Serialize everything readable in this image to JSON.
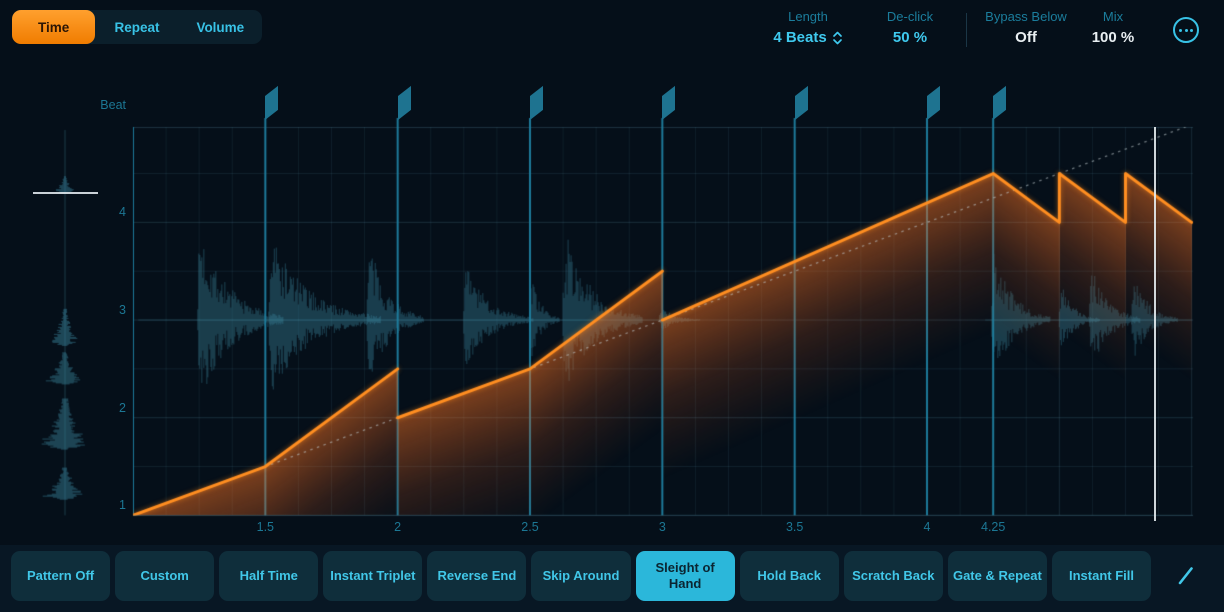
{
  "theme": {
    "background": "#050f19",
    "accent_orange": "#ff8e21",
    "accent_cyan": "#3fc9ee",
    "dim_cyan": "#1b7d9c",
    "white_value": "#e9eff2",
    "flag_color": "#1e7390",
    "beat_line_color": "#1f7fa0",
    "waveform_color": "#3e8aa2",
    "selected_preset_bg": "#2bb7da",
    "active_tab_bg": "#f78c12"
  },
  "tabs": [
    {
      "label": "Time",
      "active": true
    },
    {
      "label": "Repeat",
      "active": false
    },
    {
      "label": "Volume",
      "active": false
    }
  ],
  "params": [
    {
      "label": "Length",
      "value": "4 Beats",
      "accent": true,
      "stepper": true
    },
    {
      "label": "De-click",
      "value": "50 %",
      "accent": true,
      "stepper": false
    },
    {
      "label": "Bypass Below",
      "value": "Off",
      "accent": false,
      "stepper": false
    },
    {
      "label": "Mix",
      "value": "100 %",
      "accent": false,
      "stepper": false
    }
  ],
  "more_button": {
    "icon": "ellipsis-circle"
  },
  "presets": {
    "items": [
      "Pattern Off",
      "Custom",
      "Half Time",
      "Instant Triplet",
      "Reverse End",
      "Skip Around",
      "Sleight of Hand",
      "Hold Back",
      "Scratch Back",
      "Gate & Repeat",
      "Instant Fill"
    ],
    "selected": "Sleight of Hand"
  },
  "edit_button": {
    "icon": "pencil"
  },
  "chart_data": {
    "type": "line",
    "title": "Time pattern (playback position vs source position)",
    "beat_label": "Beat",
    "x_axis": {
      "range": [
        1,
        5
      ],
      "ticks": [
        {
          "beat": 1.5,
          "label": "1.5"
        },
        {
          "beat": 2,
          "label": "2"
        },
        {
          "beat": 2.5,
          "label": "2.5"
        },
        {
          "beat": 3,
          "label": "3"
        },
        {
          "beat": 3.5,
          "label": "3.5"
        },
        {
          "beat": 4,
          "label": "4"
        },
        {
          "beat": 4.25,
          "label": "4.25"
        }
      ]
    },
    "y_axis": {
      "range": [
        1,
        5
      ],
      "ticks": [
        {
          "beat": 4,
          "label": "4"
        },
        {
          "beat": 3,
          "label": "3"
        },
        {
          "beat": 2,
          "label": "2"
        },
        {
          "beat": 1,
          "label": "1"
        }
      ]
    },
    "grid": {
      "x_minor_step": 0.125,
      "x_beatline_step": 0.5,
      "y_minor_step": 0.5
    },
    "curve_points": [
      [
        1.0,
        1.0
      ],
      [
        1.5,
        1.5
      ],
      [
        2.0,
        2.5
      ],
      [
        2.0,
        2.0
      ],
      [
        2.5,
        2.5
      ],
      [
        3.0,
        3.5
      ],
      [
        3.0,
        3.0
      ],
      [
        4.25,
        4.5
      ],
      [
        4.5,
        4.0
      ],
      [
        4.5,
        4.5
      ],
      [
        4.75,
        4.0
      ],
      [
        4.75,
        4.5
      ],
      [
        5.0,
        4.0
      ]
    ],
    "identity_line": [
      [
        1,
        1
      ],
      [
        5,
        5
      ]
    ],
    "flags_at_beats": [
      1.5,
      2,
      2.5,
      3,
      3.5,
      4,
      4.25
    ],
    "playhead_beat": 4.86,
    "source_position_beat": 4.3,
    "waveform_clusters_main": [
      [
        1.245,
        105,
        0.32
      ],
      [
        1.515,
        92,
        0.42
      ],
      [
        1.885,
        88,
        0.21
      ],
      [
        2.25,
        62,
        0.26
      ],
      [
        2.5,
        55,
        0.11
      ],
      [
        2.625,
        98,
        0.3
      ],
      [
        2.99,
        16,
        0.15
      ],
      [
        4.245,
        78,
        0.22
      ],
      [
        4.5,
        42,
        0.15
      ],
      [
        4.615,
        68,
        0.19
      ],
      [
        4.775,
        52,
        0.17
      ]
    ],
    "waveform_clusters_source": [
      [
        4.38,
        15,
        0.17
      ],
      [
        2.92,
        20,
        0.38
      ],
      [
        2.5,
        25,
        0.33
      ],
      [
        1.93,
        33,
        0.52
      ],
      [
        1.32,
        30,
        0.33
      ]
    ]
  }
}
